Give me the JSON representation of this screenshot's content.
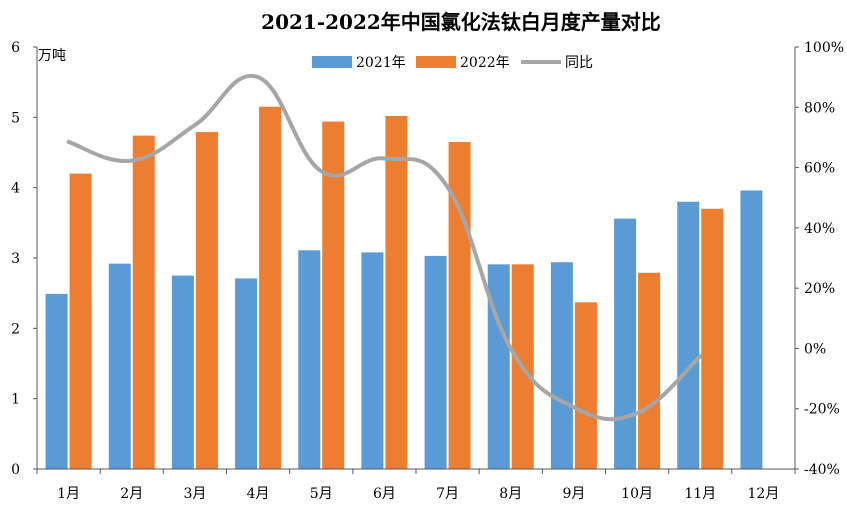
{
  "chart_data": {
    "type": "bar",
    "title": "2021-2022年中国氯化法钛白月度产量对比",
    "y_unit_label": "万吨",
    "categories": [
      "1月",
      "2月",
      "3月",
      "4月",
      "5月",
      "6月",
      "7月",
      "8月",
      "9月",
      "10月",
      "11月",
      "12月"
    ],
    "series": [
      {
        "name": "2021年",
        "kind": "bar",
        "axis": "left",
        "color": "#5B9BD5",
        "values": [
          2.49,
          2.92,
          2.75,
          2.71,
          3.11,
          3.08,
          3.03,
          2.91,
          2.94,
          3.56,
          3.8,
          3.96
        ]
      },
      {
        "name": "2022年",
        "kind": "bar",
        "axis": "left",
        "color": "#ED7D31",
        "values": [
          4.2,
          4.74,
          4.79,
          5.15,
          4.94,
          5.02,
          4.65,
          2.91,
          2.37,
          2.79,
          3.7,
          null
        ]
      },
      {
        "name": "同比",
        "kind": "line",
        "axis": "right",
        "color": "#A6A6A6",
        "values": [
          68.5,
          62.3,
          74.1,
          90.0,
          58.8,
          63.0,
          53.5,
          0.0,
          -19.5,
          -21.5,
          -2.6,
          null
        ]
      }
    ],
    "left_axis": {
      "min": 0,
      "max": 6,
      "ticks": [
        "0",
        "1",
        "2",
        "3",
        "4",
        "5",
        "6"
      ]
    },
    "right_axis": {
      "min": -40,
      "max": 100,
      "ticks": [
        "-40%",
        "-20%",
        "0%",
        "20%",
        "40%",
        "60%",
        "80%",
        "100%"
      ]
    },
    "legend_position": "top-center",
    "grid": false
  }
}
